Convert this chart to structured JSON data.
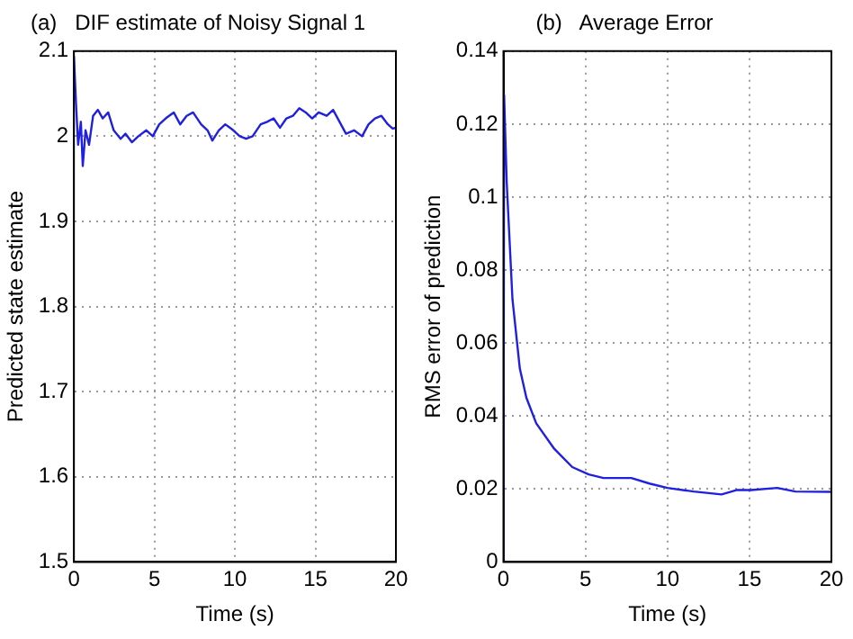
{
  "chart_data": [
    {
      "type": "line",
      "title": "(a)   DIF estimate of Noisy Signal 1",
      "xlabel": "Time (s)",
      "ylabel": "Predicted state estimate",
      "series": [
        {
          "color": "#2020e0",
          "x": [
            0,
            0.13,
            0.26,
            0.43,
            0.55,
            0.72,
            0.94,
            1.19,
            1.49,
            1.79,
            2.13,
            2.47,
            2.9,
            3.2,
            3.6,
            4.0,
            4.5,
            4.9,
            5.3,
            5.7,
            6.2,
            6.6,
            7.0,
            7.4,
            7.9,
            8.3,
            8.6,
            9.0,
            9.4,
            9.9,
            10.3,
            10.7,
            11.1,
            11.6,
            12.0,
            12.4,
            12.8,
            13.2,
            13.6,
            14.0,
            14.4,
            14.8,
            15.2,
            15.7,
            16.1,
            16.5,
            16.9,
            17.4,
            17.9,
            18.3,
            18.7,
            19.1,
            19.5,
            19.8,
            20
          ],
          "values": [
            2.094,
            2.038,
            1.99,
            2.017,
            1.965,
            2.007,
            1.99,
            2.024,
            2.031,
            2.021,
            2.028,
            2.007,
            1.997,
            2.003,
            1.993,
            2.0,
            2.007,
            2.0,
            2.014,
            2.021,
            2.028,
            2.014,
            2.024,
            2.028,
            2.014,
            2.007,
            1.995,
            2.007,
            2.014,
            2.007,
            2.0,
            1.997,
            2.0,
            2.014,
            2.017,
            2.021,
            2.01,
            2.021,
            2.024,
            2.033,
            2.028,
            2.021,
            2.028,
            2.024,
            2.031,
            2.017,
            2.003,
            2.007,
            2.0,
            2.014,
            2.021,
            2.024,
            2.014,
            2.009,
            2.01
          ]
        }
      ],
      "xlim": [
        0,
        20
      ],
      "xticks": [
        0,
        5,
        10,
        15,
        20
      ],
      "ylim": [
        1.5,
        2.1
      ],
      "yticks": [
        1.5,
        1.6,
        1.7,
        1.8,
        1.9,
        2,
        2.1
      ],
      "grid": true,
      "line_style": "solid"
    },
    {
      "type": "line",
      "title": "(b)   Average Error",
      "xlabel": "Time (s)",
      "ylabel": "RMS error of prediction",
      "series": [
        {
          "color": "#2020e0",
          "x": [
            0,
            0.04,
            0.2,
            0.55,
            1.0,
            1.4,
            2.0,
            3.1,
            4.2,
            5.2,
            6.1,
            6.9,
            7.8,
            8.9,
            10,
            11.6,
            13.3,
            14.2,
            15.1,
            16.7,
            17.8,
            20
          ],
          "values": [
            0,
            0.128,
            0.104,
            0.072,
            0.053,
            0.045,
            0.038,
            0.031,
            0.026,
            0.024,
            0.023,
            0.023,
            0.023,
            0.0215,
            0.0203,
            0.0193,
            0.0185,
            0.0197,
            0.0197,
            0.0203,
            0.0193,
            0.0192
          ]
        }
      ],
      "xlim": [
        0,
        20
      ],
      "xticks": [
        0,
        5,
        10,
        15,
        20
      ],
      "ylim": [
        0,
        0.14
      ],
      "yticks": [
        0,
        0.02,
        0.04,
        0.06,
        0.08,
        0.1,
        0.12,
        0.14
      ],
      "grid": true,
      "line_style": "solid"
    }
  ]
}
